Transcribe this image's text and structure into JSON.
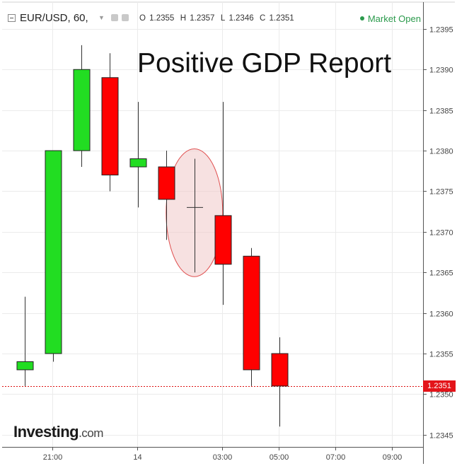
{
  "header": {
    "symbol": "EUR/USD, 60,",
    "ohlc": {
      "o_label": "O",
      "o": "1.2355",
      "h_label": "H",
      "h": "1.2357",
      "l_label": "L",
      "l": "1.2346",
      "c_label": "C",
      "c": "1.2351"
    },
    "market_status": "Market Open"
  },
  "annotation": {
    "title": "Positive GDP Report"
  },
  "branding": {
    "logo_text": "Investing",
    "logo_suffix": ".com"
  },
  "last_price_label": "1.2351",
  "colors": {
    "up": "#22dd22",
    "down": "#ff0000",
    "grid": "#ebebeb",
    "highlight": "#f0c8c8",
    "accent_green": "#2b9a4c"
  },
  "chart_data": {
    "type": "candlestick",
    "title": "Positive GDP Report",
    "y_ticks": [
      "1.2345",
      "1.2350",
      "1.2355",
      "1.2360",
      "1.2365",
      "1.2370",
      "1.2375",
      "1.2380",
      "1.2385",
      "1.2390",
      "1.2395"
    ],
    "x_ticks": [
      "21:00",
      "14",
      "03:00",
      "05:00",
      "07:00",
      "09:00"
    ],
    "ylim": [
      1.23435,
      1.23983
    ],
    "last_price": 1.2351,
    "candles": [
      {
        "open": 1.2353,
        "high": 1.2362,
        "low": 1.2351,
        "close": 1.2354
      },
      {
        "open": 1.2355,
        "high": 1.238,
        "low": 1.2354,
        "close": 1.238
      },
      {
        "open": 1.238,
        "high": 1.2393,
        "low": 1.2378,
        "close": 1.239
      },
      {
        "open": 1.2389,
        "high": 1.2392,
        "low": 1.2375,
        "close": 1.2377
      },
      {
        "open": 1.2378,
        "high": 1.2386,
        "low": 1.2373,
        "close": 1.2379
      },
      {
        "open": 1.2378,
        "high": 1.238,
        "low": 1.2369,
        "close": 1.2374
      },
      {
        "open": 1.2373,
        "high": 1.2379,
        "low": 1.2365,
        "close": 1.2373
      },
      {
        "open": 1.2372,
        "high": 1.2386,
        "low": 1.2361,
        "close": 1.2366
      },
      {
        "open": 1.2367,
        "high": 1.2368,
        "low": 1.2351,
        "close": 1.2353
      },
      {
        "open": 1.2355,
        "high": 1.2357,
        "low": 1.2346,
        "close": 1.2351
      }
    ],
    "highlighted_candle_index": 6
  }
}
